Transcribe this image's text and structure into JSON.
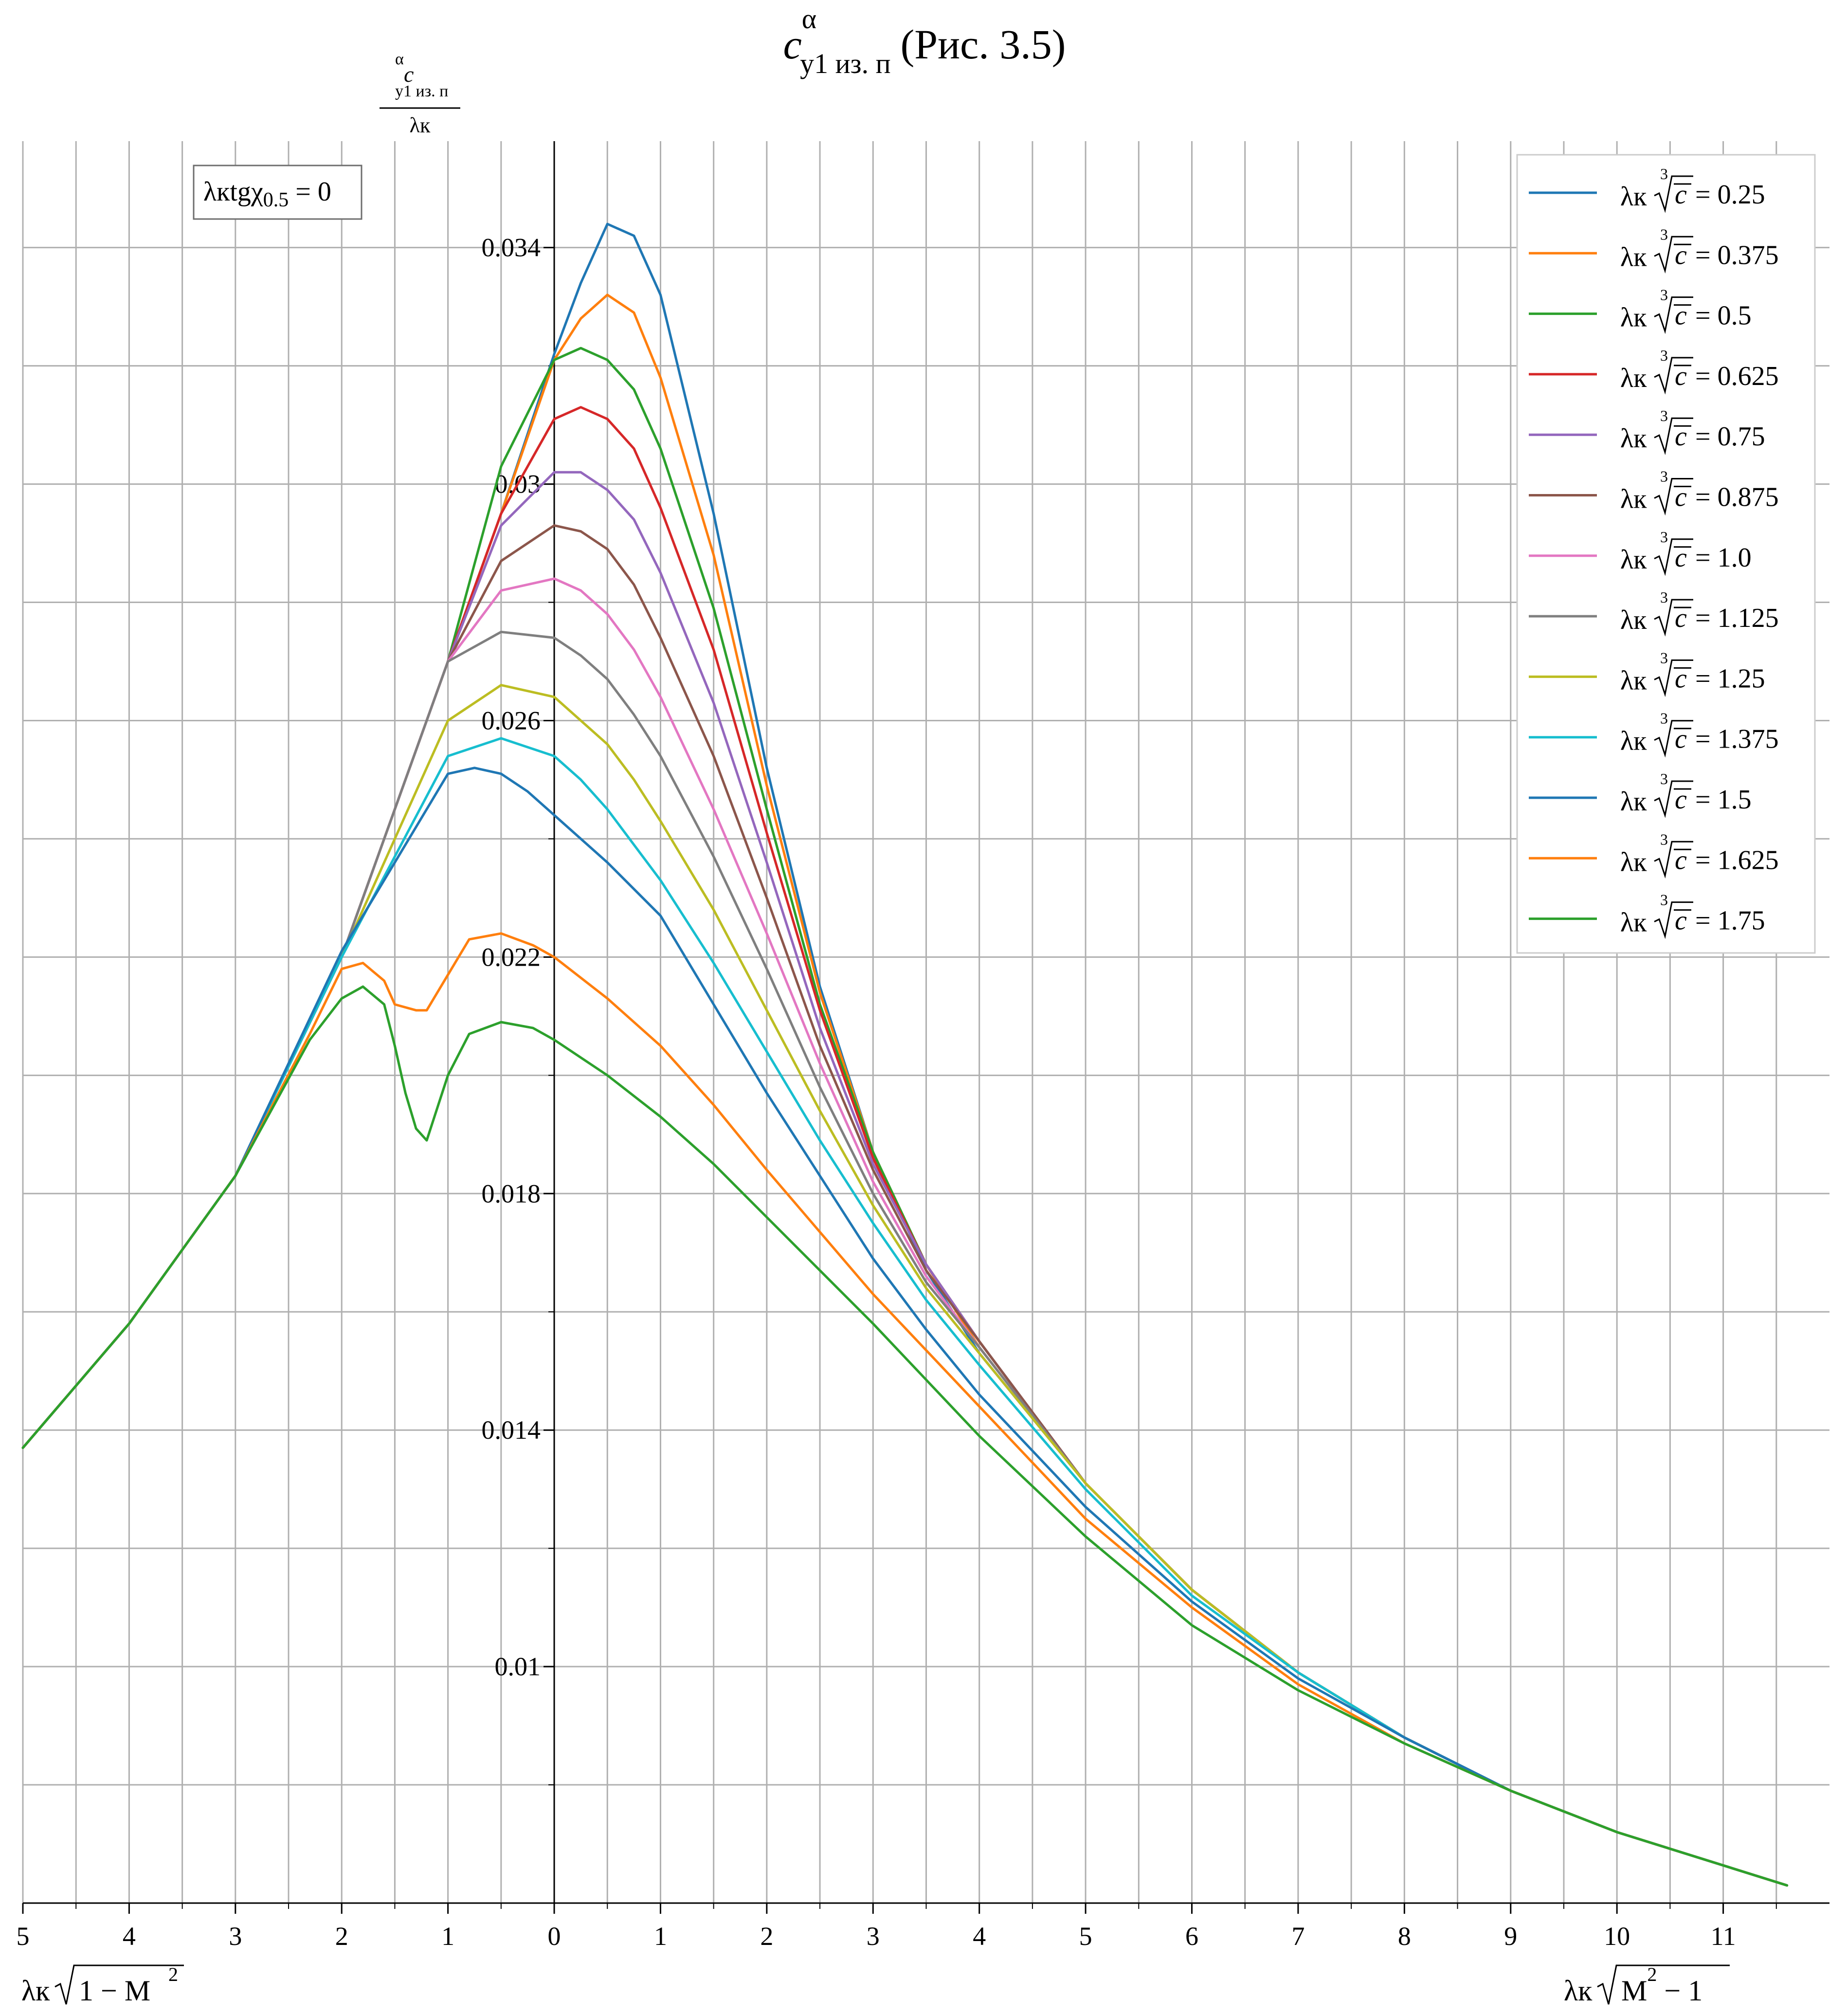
{
  "chart_data": {
    "type": "line",
    "title": "c_y1 из. п ^α (Рис. 3.5)",
    "title_parts": {
      "c": "c",
      "alpha": "α",
      "sub": "y1 из. п",
      "rest": "(Рис. 3.5)"
    },
    "ylabel": {
      "numerator_c": "c",
      "numerator_alpha": "α",
      "numerator_sub": "y1 из. п",
      "denominator": "λк"
    },
    "xlabel_left": {
      "main": "λк",
      "radicand": "1 − M",
      "exponent": "2"
    },
    "xlabel_right": {
      "main": "λк",
      "radicand": "M",
      "exponent": "2",
      "tail": " − 1"
    },
    "annotation": {
      "main": "λкtgχ",
      "sub": "0.5",
      "tail": " = 0"
    },
    "xlim": [
      -5,
      12
    ],
    "ylim": [
      0.006,
      0.0358
    ],
    "grid": true,
    "x_ticks": [
      -5,
      -4,
      -3,
      -2,
      -1,
      0,
      1,
      2,
      3,
      4,
      5,
      6,
      7,
      8,
      9,
      10,
      11
    ],
    "x_tick_labels": [
      "5",
      "4",
      "3",
      "2",
      "1",
      "0",
      "1",
      "2",
      "3",
      "4",
      "5",
      "6",
      "7",
      "8",
      "9",
      "10",
      "11"
    ],
    "x_minor_ticks": [
      -4.5,
      -3.5,
      -2.5,
      -1.5,
      -0.5,
      0.5,
      1.5,
      2.5,
      3.5,
      4.5,
      5.5,
      6.5,
      7.5,
      8.5,
      9.5,
      10.5,
      11.5
    ],
    "y_ticks": [
      0.01,
      0.014,
      0.018,
      0.022,
      0.026,
      0.03,
      0.034
    ],
    "y_tick_labels": [
      "0.01",
      "0.014",
      "0.018",
      "0.022",
      "0.026",
      "0.03",
      "0.034"
    ],
    "y_minor_ticks": [
      0.008,
      0.012,
      0.016,
      0.02,
      0.024,
      0.028,
      0.032
    ],
    "legend_position": "top-right",
    "legend_prefix": "λк",
    "legend_root_index": "3",
    "legend_radicand": "c",
    "legend_equals": " = ",
    "series": [
      {
        "name": "0.25",
        "color": "#1f77b4",
        "x": [
          -5,
          -4,
          -3,
          -2,
          -1,
          -0.5,
          0,
          0.25,
          0.5,
          0.75,
          1,
          1.5,
          2,
          2.5,
          3,
          3.5,
          4,
          5,
          6,
          7,
          8,
          9,
          10,
          11.6
        ],
        "y": [
          0.0137,
          0.0158,
          0.0183,
          0.022,
          0.027,
          0.0295,
          0.0322,
          0.0334,
          0.0344,
          0.0342,
          0.0332,
          0.0295,
          0.0252,
          0.0215,
          0.0187,
          0.0167,
          0.0153,
          0.0131,
          0.0113,
          0.0099,
          0.0088,
          0.0079,
          0.0072,
          0.0063
        ]
      },
      {
        "name": "0.375",
        "color": "#ff7f0e",
        "x": [
          -5,
          -4,
          -3,
          -2,
          -1,
          -0.5,
          0,
          0.25,
          0.5,
          0.75,
          1,
          1.5,
          2,
          2.5,
          3,
          3.5,
          4,
          5,
          6,
          7,
          8,
          9,
          10,
          11.6
        ],
        "y": [
          0.0137,
          0.0158,
          0.0183,
          0.022,
          0.027,
          0.0295,
          0.0321,
          0.0328,
          0.0332,
          0.0329,
          0.0318,
          0.0288,
          0.0249,
          0.0214,
          0.0187,
          0.0168,
          0.0154,
          0.0131,
          0.0113,
          0.0099,
          0.0088,
          0.0079,
          0.0072,
          0.0063
        ]
      },
      {
        "name": "0.5",
        "color": "#2ca02c",
        "x": [
          -5,
          -4,
          -3,
          -2,
          -1,
          -0.5,
          0,
          0.25,
          0.5,
          0.75,
          1,
          1.5,
          2,
          2.5,
          3,
          3.5,
          4,
          5,
          6,
          7,
          8,
          9,
          10,
          11.6
        ],
        "y": [
          0.0137,
          0.0158,
          0.0183,
          0.022,
          0.027,
          0.0303,
          0.0321,
          0.0323,
          0.0321,
          0.0316,
          0.0306,
          0.0279,
          0.0245,
          0.0212,
          0.0187,
          0.0168,
          0.0155,
          0.0131,
          0.0113,
          0.0099,
          0.0088,
          0.0079,
          0.0072,
          0.0063
        ]
      },
      {
        "name": "0.625",
        "color": "#d62728",
        "x": [
          -5,
          -4,
          -3,
          -2,
          -1,
          -0.5,
          0,
          0.25,
          0.5,
          0.75,
          1,
          1.5,
          2,
          2.5,
          3,
          3.5,
          4,
          5,
          6,
          7,
          8,
          9,
          10,
          11.6
        ],
        "y": [
          0.0137,
          0.0158,
          0.0183,
          0.022,
          0.027,
          0.0295,
          0.0311,
          0.0313,
          0.0311,
          0.0306,
          0.0296,
          0.0272,
          0.0241,
          0.0211,
          0.0186,
          0.0168,
          0.0155,
          0.0131,
          0.0113,
          0.0099,
          0.0088,
          0.0079,
          0.0072,
          0.0063
        ]
      },
      {
        "name": "0.75",
        "color": "#9467bd",
        "x": [
          -5,
          -4,
          -3,
          -2,
          -1,
          -0.5,
          0,
          0.25,
          0.5,
          0.75,
          1,
          1.5,
          2,
          2.5,
          3,
          3.5,
          4,
          5,
          6,
          7,
          8,
          9,
          10,
          11.6
        ],
        "y": [
          0.0137,
          0.0158,
          0.0183,
          0.022,
          0.027,
          0.0293,
          0.0302,
          0.0302,
          0.0299,
          0.0294,
          0.0285,
          0.0263,
          0.0236,
          0.0208,
          0.0185,
          0.0168,
          0.0155,
          0.0131,
          0.0113,
          0.0099,
          0.0088,
          0.0079,
          0.0072,
          0.0063
        ]
      },
      {
        "name": "0.875",
        "color": "#8c564b",
        "x": [
          -5,
          -4,
          -3,
          -2,
          -1,
          -0.5,
          0,
          0.25,
          0.5,
          0.75,
          1,
          1.5,
          2,
          2.5,
          3,
          3.5,
          4,
          5,
          6,
          7,
          8,
          9,
          10,
          11.6
        ],
        "y": [
          0.0137,
          0.0158,
          0.0183,
          0.022,
          0.027,
          0.0287,
          0.0293,
          0.0292,
          0.0289,
          0.0283,
          0.0274,
          0.0254,
          0.023,
          0.0205,
          0.0184,
          0.0167,
          0.0155,
          0.0131,
          0.0113,
          0.0099,
          0.0088,
          0.0079,
          0.0072,
          0.0063
        ]
      },
      {
        "name": "1.0",
        "color": "#e377c2",
        "x": [
          -5,
          -4,
          -3,
          -2,
          -1,
          -0.5,
          0,
          0.25,
          0.5,
          0.75,
          1,
          1.5,
          2,
          2.5,
          3,
          3.5,
          4,
          5,
          6,
          7,
          8,
          9,
          10,
          11.6
        ],
        "y": [
          0.0137,
          0.0158,
          0.0183,
          0.022,
          0.027,
          0.0282,
          0.0284,
          0.0282,
          0.0278,
          0.0272,
          0.0264,
          0.0245,
          0.0224,
          0.0202,
          0.0182,
          0.0166,
          0.0154,
          0.0131,
          0.0113,
          0.0099,
          0.0088,
          0.0079,
          0.0072,
          0.0063
        ]
      },
      {
        "name": "1.125",
        "color": "#7f7f7f",
        "x": [
          -5,
          -4,
          -3,
          -2,
          -1,
          -0.5,
          0,
          0.25,
          0.5,
          0.75,
          1,
          1.5,
          2,
          2.5,
          3,
          3.5,
          4,
          5,
          6,
          7,
          8,
          9,
          10,
          11.6
        ],
        "y": [
          0.0137,
          0.0158,
          0.0183,
          0.022,
          0.027,
          0.0275,
          0.0274,
          0.0271,
          0.0267,
          0.0261,
          0.0254,
          0.0237,
          0.0218,
          0.0198,
          0.018,
          0.0165,
          0.0154,
          0.0131,
          0.0113,
          0.0099,
          0.0088,
          0.0079,
          0.0072,
          0.0063
        ]
      },
      {
        "name": "1.25",
        "color": "#bcbd22",
        "x": [
          -5,
          -4,
          -3,
          -2,
          -1,
          -0.5,
          0,
          0.25,
          0.5,
          0.75,
          1,
          1.5,
          2,
          2.5,
          3,
          3.5,
          4,
          5,
          6,
          7,
          8,
          9,
          10,
          11.6
        ],
        "y": [
          0.0137,
          0.0158,
          0.0183,
          0.022,
          0.026,
          0.0266,
          0.0264,
          0.026,
          0.0256,
          0.025,
          0.0243,
          0.0228,
          0.0211,
          0.0194,
          0.0178,
          0.0164,
          0.0153,
          0.0131,
          0.0113,
          0.0099,
          0.0088,
          0.0079,
          0.0072,
          0.0063
        ]
      },
      {
        "name": "1.375",
        "color": "#17becf",
        "x": [
          -5,
          -4,
          -3,
          -2,
          -1,
          -0.5,
          0,
          0.25,
          0.5,
          0.75,
          1,
          1.5,
          2,
          2.5,
          3,
          3.5,
          4,
          5,
          6,
          7,
          8,
          9,
          10,
          11.6
        ],
        "y": [
          0.0137,
          0.0158,
          0.0183,
          0.022,
          0.0254,
          0.0257,
          0.0254,
          0.025,
          0.0245,
          0.0239,
          0.0233,
          0.0219,
          0.0204,
          0.0189,
          0.0175,
          0.0162,
          0.0151,
          0.013,
          0.0112,
          0.0099,
          0.0088,
          0.0079,
          0.0072,
          0.0063
        ]
      },
      {
        "name": "1.5",
        "color": "#1f77b4",
        "x": [
          -5,
          -4,
          -3,
          -2,
          -1,
          -0.75,
          -0.5,
          -0.25,
          0,
          0.5,
          1,
          1.5,
          2,
          2.5,
          3,
          3.5,
          4,
          5,
          6,
          7,
          8,
          9,
          10,
          11.6
        ],
        "y": [
          0.0137,
          0.0158,
          0.0183,
          0.0221,
          0.0251,
          0.0252,
          0.0251,
          0.0248,
          0.0244,
          0.0236,
          0.0227,
          0.0212,
          0.0197,
          0.0183,
          0.0169,
          0.0157,
          0.0146,
          0.0127,
          0.0111,
          0.0098,
          0.0088,
          0.0079,
          0.0072,
          0.0063
        ]
      },
      {
        "name": "1.625",
        "color": "#ff7f0e",
        "x": [
          -5,
          -4,
          -3,
          -2.3,
          -2,
          -1.8,
          -1.6,
          -1.5,
          -1.3,
          -1.2,
          -1,
          -0.8,
          -0.5,
          -0.2,
          0,
          0.5,
          1,
          1.5,
          2,
          3,
          4,
          5,
          6,
          7,
          8,
          9,
          10,
          11.6
        ],
        "y": [
          0.0137,
          0.0158,
          0.0183,
          0.0207,
          0.0218,
          0.0219,
          0.0216,
          0.0212,
          0.0211,
          0.0211,
          0.0217,
          0.0223,
          0.0224,
          0.0222,
          0.022,
          0.0213,
          0.0205,
          0.0195,
          0.0184,
          0.0163,
          0.0144,
          0.0125,
          0.011,
          0.0097,
          0.0087,
          0.0079,
          0.0072,
          0.0063
        ]
      },
      {
        "name": "1.75",
        "color": "#2ca02c",
        "x": [
          -5,
          -4,
          -3,
          -2.3,
          -2,
          -1.8,
          -1.6,
          -1.5,
          -1.4,
          -1.3,
          -1.2,
          -1,
          -0.8,
          -0.5,
          -0.2,
          0,
          0.5,
          1,
          1.5,
          2,
          3,
          4,
          5,
          6,
          7,
          8,
          9,
          10,
          11.6
        ],
        "y": [
          0.0137,
          0.0158,
          0.0183,
          0.0206,
          0.0213,
          0.0215,
          0.0212,
          0.0205,
          0.0197,
          0.0191,
          0.0189,
          0.02,
          0.0207,
          0.0209,
          0.0208,
          0.0206,
          0.02,
          0.0193,
          0.0185,
          0.0176,
          0.0158,
          0.0139,
          0.0122,
          0.0107,
          0.0096,
          0.0087,
          0.0079,
          0.0072,
          0.0063
        ]
      }
    ]
  }
}
